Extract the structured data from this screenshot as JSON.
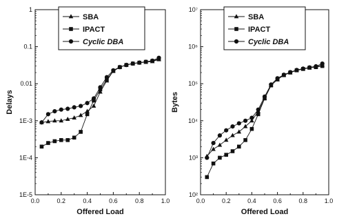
{
  "chart_data": [
    {
      "type": "line",
      "scale_y": "log",
      "xlabel": "Offered Load",
      "ylabel": "Delays",
      "xlim": [
        0,
        1
      ],
      "ylim": [
        1e-05,
        1
      ],
      "x_ticks": [
        0.0,
        0.2,
        0.4,
        0.6,
        0.8,
        1.0
      ],
      "x_tick_labels": [
        "0.0",
        "0.2",
        "0.4",
        "0.6",
        "0.8",
        "1.0"
      ],
      "y_ticks": [
        1e-05,
        0.0001,
        0.001,
        0.01,
        0.1,
        1
      ],
      "y_tick_labels": [
        "1E-5",
        "1E-4",
        "1E-3",
        "0.01",
        "0.1",
        "1"
      ],
      "grid": false,
      "legend_position": "top-center",
      "x": [
        0.05,
        0.1,
        0.15,
        0.2,
        0.25,
        0.3,
        0.35,
        0.4,
        0.45,
        0.5,
        0.55,
        0.6,
        0.65,
        0.7,
        0.75,
        0.8,
        0.85,
        0.9,
        0.95
      ],
      "series": [
        {
          "name": "SBA",
          "marker": "triangle",
          "values": [
            0.0009,
            0.00095,
            0.001,
            0.001,
            0.0011,
            0.0012,
            0.0014,
            0.0018,
            0.0025,
            0.006,
            0.012,
            0.022,
            0.028,
            0.032,
            0.035,
            0.037,
            0.038,
            0.04,
            0.045
          ]
        },
        {
          "name": "IPACT",
          "marker": "square",
          "values": [
            0.0002,
            0.00025,
            0.00028,
            0.0003,
            0.0003,
            0.00035,
            0.0005,
            0.0015,
            0.0035,
            0.007,
            0.013,
            0.022,
            0.028,
            0.032,
            0.035,
            0.037,
            0.039,
            0.041,
            0.047
          ]
        },
        {
          "name": "Cyclic DBA",
          "marker": "circle",
          "values": [
            0.0009,
            0.0015,
            0.0018,
            0.002,
            0.0021,
            0.0023,
            0.0025,
            0.003,
            0.004,
            0.008,
            0.015,
            0.023,
            0.028,
            0.032,
            0.035,
            0.037,
            0.039,
            0.042,
            0.05
          ]
        }
      ]
    },
    {
      "type": "line",
      "scale_y": "log",
      "xlabel": "Offered Load",
      "ylabel": "Bytes",
      "xlim": [
        0,
        1
      ],
      "ylim": [
        100,
        10000000
      ],
      "x_ticks": [
        0.0,
        0.2,
        0.4,
        0.6,
        0.8,
        1.0
      ],
      "x_tick_labels": [
        "0.0",
        "0.2",
        "0.4",
        "0.6",
        "0.8",
        "1.0"
      ],
      "y_ticks": [
        100,
        1000,
        10000,
        100000,
        1000000,
        10000000
      ],
      "y_tick_labels": [
        "10²",
        "10³",
        "10⁴",
        "10⁵",
        "10⁶",
        "10⁷"
      ],
      "grid": false,
      "legend_position": "top-center",
      "x": [
        0.05,
        0.1,
        0.15,
        0.2,
        0.25,
        0.3,
        0.35,
        0.4,
        0.45,
        0.5,
        0.55,
        0.6,
        0.65,
        0.7,
        0.75,
        0.8,
        0.85,
        0.9,
        0.95
      ],
      "series": [
        {
          "name": "SBA",
          "marker": "triangle",
          "values": [
            1100,
            1700,
            2200,
            3000,
            4000,
            5000,
            7000,
            10000,
            18000,
            40000,
            90000,
            130000,
            170000,
            200000,
            230000,
            250000,
            270000,
            290000,
            320000
          ]
        },
        {
          "name": "IPACT",
          "marker": "square",
          "values": [
            300,
            700,
            1000,
            1200,
            1500,
            2000,
            3000,
            6000,
            15000,
            40000,
            90000,
            130000,
            170000,
            200000,
            230000,
            250000,
            270000,
            280000,
            300000
          ]
        },
        {
          "name": "Cyclic DBA",
          "marker": "circle",
          "values": [
            1000,
            2500,
            4000,
            5500,
            7000,
            8500,
            10000,
            12000,
            20000,
            45000,
            95000,
            140000,
            175000,
            205000,
            235000,
            255000,
            275000,
            295000,
            350000
          ]
        }
      ]
    }
  ]
}
